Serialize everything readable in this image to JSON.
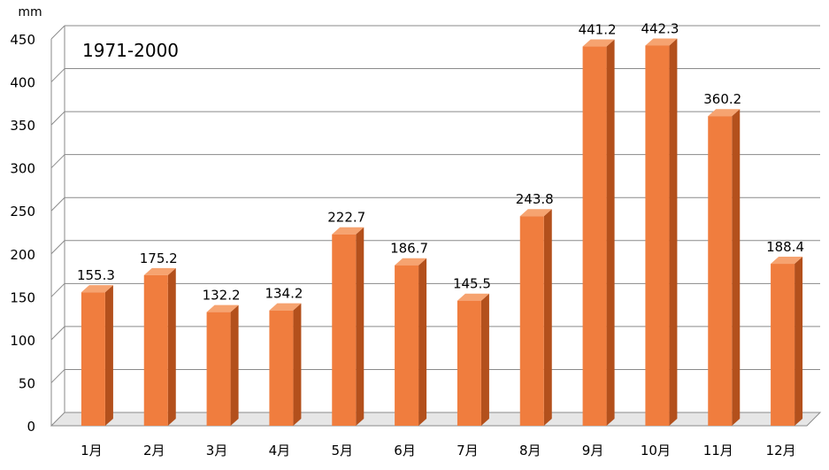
{
  "chart_data": {
    "type": "bar",
    "title": "1971-2000",
    "ylabel": "mm",
    "xlabel": "",
    "ylim": [
      0,
      450
    ],
    "ytick_step": 50,
    "grid": true,
    "style": "3d",
    "categories": [
      "1月",
      "2月",
      "3月",
      "4月",
      "5月",
      "6月",
      "7月",
      "8月",
      "9月",
      "10月",
      "11月",
      "12月"
    ],
    "values": [
      155.3,
      175.2,
      132.2,
      134.2,
      222.7,
      186.7,
      145.5,
      243.8,
      441.2,
      442.3,
      360.2,
      188.4
    ],
    "value_labels": [
      "155.3",
      "175.2",
      "132.2",
      "134.2",
      "222.7",
      "186.7",
      "145.5",
      "243.8",
      "441.2",
      "442.3",
      "360.2",
      "188.4"
    ],
    "colors": {
      "bar_front": "#F07D3E",
      "bar_side": "#B3501C",
      "bar_top": "#F6A370",
      "grid": "#8A8A8A"
    }
  }
}
